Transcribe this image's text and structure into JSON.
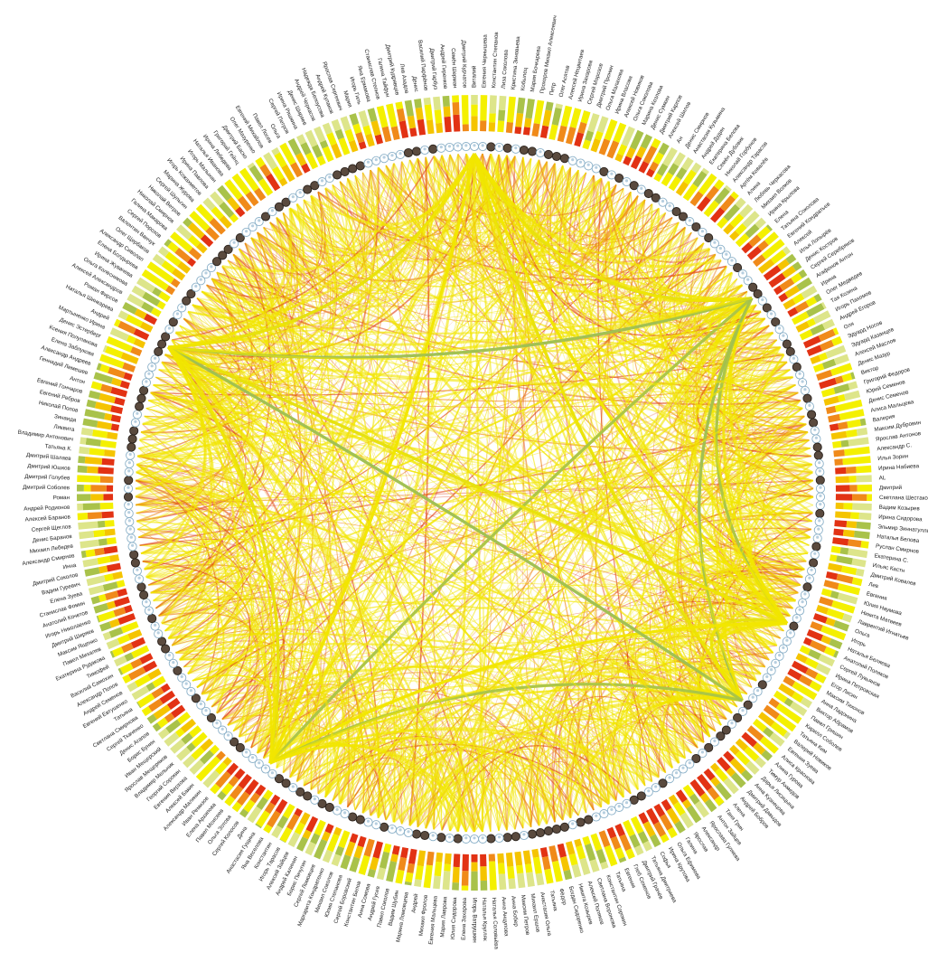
{
  "diagram": {
    "type": "circular-network",
    "node_shape": "avatar-circle",
    "colors": {
      "background": "#ffffff",
      "ring": "#1b1b1b",
      "bar_light": "#f4f000",
      "bar_mid": "#f5c400",
      "bar_orange": "#f08a1a",
      "bar_red": "#e23214",
      "bar_olive": "#a9c24a",
      "bar_pale": "#dde58a",
      "edge_yellow": "#f2e600",
      "edge_orange": "#ef8a1a",
      "edge_red": "#e0421a",
      "edge_green": "#9fbf52",
      "avatar_fill": "#ffffff",
      "avatar_stroke": "#8ab0c8"
    },
    "labels": [
      "Виталий",
      "Евгения Чернышева",
      "Константин Степанов",
      "Лиза Соколова",
      "Кристина Зиновьева",
      "Кобылец",
      "Мария Бочкарева",
      "Прохоров Михаил Алексеевич",
      "Петр",
      "Олег Асятов",
      "Алексей Нецветаев",
      "Ирина Захарова",
      "Сергей Морозов",
      "Дмитрий Пронин",
      "Ольга Малахова",
      "Ирина Власова",
      "Алексей Новиков",
      "Ольга Соколова",
      "Марина Козлова",
      "Денис Сумкин",
      "Дмитрий Карпов",
      "Алексей Шилов",
      "Ан",
      "Денис Смирнов",
      "Анастасия Кузьмина",
      "Андрей Дудин",
      "Екатерина Белова",
      "Семён Дубовик",
      "Николай Горбунов",
      "Александр Тарасов",
      "Артём Ковалёв",
      "Алина",
      "Любовь Черкасова",
      "Михаил Волков",
      "Ирина Крылова",
      "Елена",
      "Татьяна Соколова",
      "Евгений Кондратьев",
      "Алексей",
      "Илья Лопырёв",
      "Денис Костров",
      "Сергей Серебряков",
      "Агафонов Антон",
      "Ирина",
      "Олег Медведев",
      "Тая Козина",
      "Игорь Пахомов",
      "Андрей Егоров",
      "Оля",
      "Эдуард Носов",
      "Эдуард Казанцев",
      "Алексей Маслов",
      "Денис Мазур",
      "Виктор",
      "Григорий Федоров",
      "Юрий Семенов",
      "Денис Семенов",
      "Алиса Мальцева",
      "Валерия",
      "Максим Дубровин",
      "Ярослав Антонов",
      "Александр С.",
      "Илья Зорин",
      "Ирина Набиева",
      "AL",
      "Дмитрий",
      "Светлана Шестакова",
      "Вадим Козырев",
      "Ирина Сидорова",
      "Эльмир Зиннатуллин",
      "Наталья Белова",
      "Руслан Смирнов",
      "Екатерина С.",
      "Ильяс Кастн",
      "Дмитрий Ковалев",
      "Лев",
      "Евгения",
      "Юлия Наумова",
      "Никита Матвеев",
      "Лаврентий Игнатьев",
      "Ольга",
      "Игорь",
      "Наталья Беляева",
      "Анатолий Поляков",
      "Сергей Лукьянов",
      "Ирина Петровская",
      "Егор Лисин",
      "Максим Тихонов",
      "Анна Ладонина",
      "Виктор Абрамов",
      "Павел Гришин",
      "Кирилл Соболев",
      "Татьяна Ким",
      "Валерий Новиков",
      "Евгения Зуева",
      "Алиса Краснова",
      "Алина Гурова",
      "Тимур Ахмедов",
      "Дарья Лисицына",
      "Анна Кузнецова",
      "Дмитрий Давыдов",
      "Андрей Бобров",
      "Алена",
      "Таня Грин",
      "Антон Зайцев",
      "Ярослава Гуляева",
      "Александр",
      "Ярослав",
      "Галина",
      "Ольга Ефимова",
      "Ирина Крутова",
      "Софья",
      "Татьяна Дмитриева",
      "Дмитрий Грачёв",
      "Глеб Семенов",
      "Евгения",
      "Татьяна",
      "Константин Сорокин",
      "Светлана Воронова",
      "Алексей Поляков",
      "Никита Козырев",
      "Богдан Сидоренко",
      "Фёдор",
      "Татьяна",
      "Анастасия Ольга",
      "Михаил Ершов",
      "Максим Петров",
      "Анна Бобер",
      "Анна Анцупова",
      "Наталья Соловьёва",
      "Наталья Кругляк",
      "Игорь Ватрушкин",
      "Елена Захарова",
      "Юлия Сидорова",
      "Мария Лаврова",
      "Евгения Мальцева",
      "Михаил Фролов",
      "Андрей",
      "Марина Ломовцева",
      "Вадим Шубин",
      "Павел Соколов",
      "Андрей Гусев",
      "Анна Сомова",
      "Константин Белов",
      "Сергей Боровский",
      "Юлия Степанова",
      "Михаил Соколов",
      "Маргарита Кондратенко",
      "Сергей Ломовцев",
      "Борис Пичугин",
      "Андрей Калинин",
      "Алексей Зайцев",
      "Игорь Тарасов",
      "Константин",
      "Яна Веселова",
      "Анастасия Гущина",
      "Дина",
      "Сергей Колосов",
      "Ольга Зотова",
      "Павел Моисеев",
      "Елена Архипова",
      "Иван Ремизов",
      "Александр Малинин",
      "Алексей Бакин",
      "Евгения Верхова",
      "Георгий Сорокин",
      "Владимир Мельник",
      "Ярослав Мещеряков",
      "Иван Мещерский",
      "Борис Бунин",
      "Денис Агапов",
      "Сергей Ткаченко",
      "Светлана Смирнова",
      "Татьяна",
      "Евгений Евтушенко",
      "Андрей Семенов",
      "Александр Попов",
      "Василий Самохин",
      "Тимофей",
      "Екатерина Рудакова",
      "Павел Михалев",
      "Максим Ященко",
      "Дмитрий Ширяев",
      "Игорь Николаенко",
      "Анатолий Кочетов",
      "Станислав Фомин",
      "Елена Зуева",
      "Вадим Гуревич",
      "Дмитрий Соколов",
      "Инна",
      "Александр Смирнов",
      "Михаил Лебедев",
      "Денис Баранов",
      "Сергей Щеглов",
      "Алексей Баранов",
      "Андрей Родионов",
      "Роман",
      "Дмитрий Соболев",
      "Дмитрий Голубев",
      "Дмитрий Юшков",
      "Дмитрий Шалаев",
      "Татьяна К.",
      "Владимир Антонович",
      "Ликвита",
      "Зинаида",
      "Николай Попов",
      "Евгений Ребров",
      "Евгений Гончаров",
      "Антон",
      "Геннадий Лемешев",
      "Александр Андреев",
      "Елена Заблукова",
      "Ксения Полупанова",
      "Денис Эстерберг",
      "Мартыненко Ирина",
      "Андрей",
      "Наталья Шинкарева",
      "Роман Фирсов",
      "Алексей Александров",
      "Ольга Колесникова",
      "Ирина Жувачева",
      "Елена Болдырева",
      "Александр Сиволап",
      "Олег Щербаков",
      "Валентин Ванчук",
      "Сергей Порохов",
      "Галина Макарова",
      "Николай Смирнов",
      "Николай Ветров",
      "Сергей Шульгин",
      "Марина Журова",
      "Игорь Кожахметов",
      "Ирина Павлова",
      "Игорь Малыхин",
      "Наталья Иванова",
      "Ирина Лебедева",
      "Григорий Гейнц",
      "Дмитрий Баско",
      "Олег Мазуренко",
      "Евгений Михайлов",
      "Павел Лосев",
      "Ольга",
      "Сергей Петров",
      "Ирина Ряшкина",
      "Денис Ширяев",
      "Андрей Черкасов",
      "Надежда Белоусова",
      "Андрей Кулаков",
      "Ярослав Сергеевич",
      "Мария",
      "Игорь Гиль",
      "Яна Ермакова",
      "Станислав Степнов",
      "Галина Тайфун",
      "Дмитрий Кудрявцев",
      "Лев Азадов",
      "Денис",
      "Василий Парфёнов",
      "Дмитрий Гарбуз",
      "Андрей Гиренков",
      "Семён Шерман",
      "Дмитрий Курчатов"
    ],
    "hubs": [
      0,
      40,
      82,
      93,
      158,
      215
    ]
  }
}
